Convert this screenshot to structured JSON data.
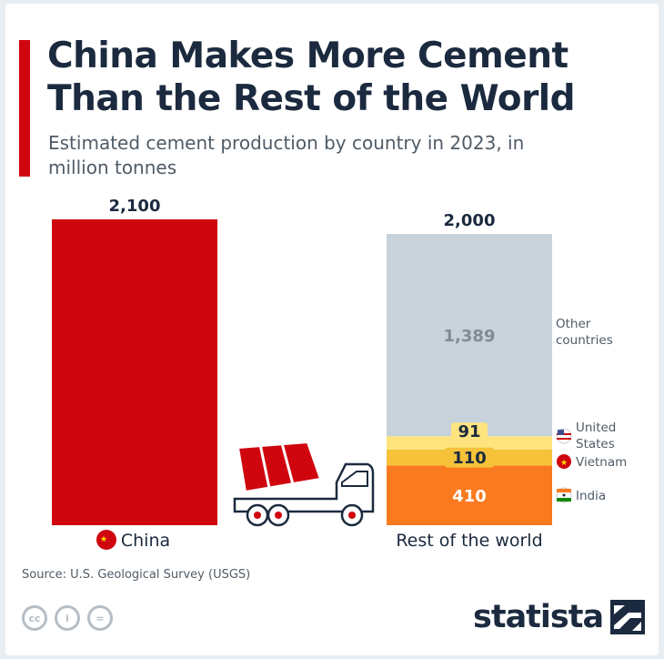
{
  "header": {
    "title": "China Makes More Cement Than the Rest of the World",
    "subtitle": "Estimated cement production by country in 2023, in million tonnes"
  },
  "chart_data": {
    "type": "bar",
    "categories": [
      "China",
      "Rest of the world"
    ],
    "totals": [
      2100,
      2000
    ],
    "total_labels": [
      "2,100",
      "2,000"
    ],
    "stacks": [
      {
        "category": "China",
        "segments": [
          {
            "name": "",
            "value": 2100,
            "label": "",
            "color": "#d0060f"
          }
        ]
      },
      {
        "category": "Rest of the world",
        "segments": [
          {
            "name": "India",
            "value": 410,
            "label": "410",
            "color": "#f97a1f",
            "label_color": "#ffffff",
            "flag": "india-flag-icon"
          },
          {
            "name": "Vietnam",
            "value": 110,
            "label": "110",
            "color": "#f5c23a",
            "label_color": "#1b2a3e",
            "flag": "vietnam-flag-icon"
          },
          {
            "name": "United States",
            "value": 91,
            "label": "91",
            "color": "#fde47f",
            "label_color": "#1b2a3e",
            "flag": "us-flag-icon"
          },
          {
            "name": "Other countries",
            "value": 1389,
            "label": "1,389",
            "color": "#c7d2da",
            "label_color": "#7f8b96",
            "flag": ""
          }
        ]
      }
    ],
    "legend_labels": {
      "other": [
        "Other",
        "countries"
      ],
      "us": [
        "United",
        "States"
      ],
      "vietnam": [
        "Vietnam"
      ],
      "india": [
        "India"
      ]
    },
    "ylim": [
      0,
      2100
    ],
    "grid": false,
    "xlabel": "",
    "ylabel": ""
  },
  "decoration": {
    "illustration": "cement-mixer-truck-icon",
    "china_flag": "china-flag-icon"
  },
  "footer": {
    "source": "Source: U.S. Geological Survey (USGS)",
    "cc_icons": [
      "cc",
      "i",
      "="
    ],
    "brand": "statista"
  },
  "colors": {
    "accent": "#d0060f",
    "text": "#1b2a3e",
    "muted": "#4f5b66"
  }
}
